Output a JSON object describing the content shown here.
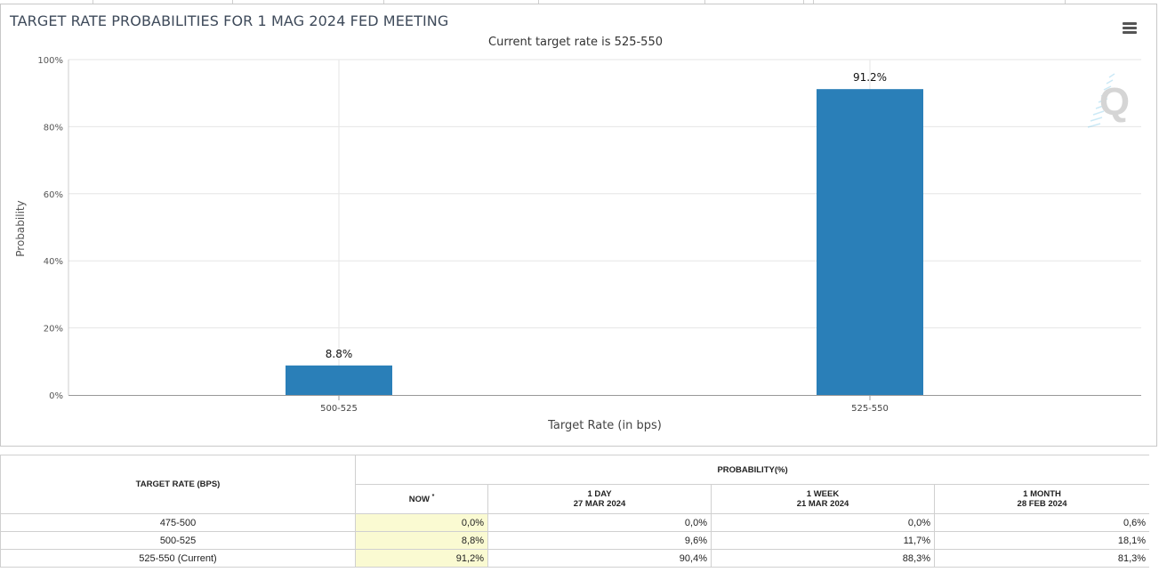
{
  "chart_data": {
    "type": "bar",
    "title": "TARGET RATE PROBABILITIES FOR 1 MAG 2024 FED MEETING",
    "subtitle": "Current target rate is 525-550",
    "xlabel": "Target Rate (in bps)",
    "ylabel": "Probability",
    "categories": [
      "500-525",
      "525-550"
    ],
    "values": [
      8.8,
      91.2
    ],
    "data_labels": [
      "8.8%",
      "91.2%"
    ],
    "ylim": [
      0,
      100
    ],
    "yticks": [
      0,
      20,
      40,
      60,
      80,
      100
    ],
    "ytick_labels": [
      "0%",
      "20%",
      "40%",
      "60%",
      "80%",
      "100%"
    ],
    "grid": true,
    "bar_color": "#2a7fb8"
  },
  "watermark": "Q",
  "menu_icon": "hamburger-menu-icon",
  "table": {
    "target_rate_header": "TARGET RATE (BPS)",
    "probability_header": "PROBABILITY(%)",
    "columns": [
      {
        "label": "NOW",
        "marker": "*",
        "date": ""
      },
      {
        "label": "1 DAY",
        "date": "27 MAR 2024"
      },
      {
        "label": "1 WEEK",
        "date": "21 MAR 2024"
      },
      {
        "label": "1 MONTH",
        "date": "28 FEB 2024"
      }
    ],
    "rows": [
      {
        "rate": "475-500",
        "values": [
          "0,0%",
          "0,0%",
          "0,0%",
          "0,6%"
        ]
      },
      {
        "rate": "500-525",
        "values": [
          "8,8%",
          "9,6%",
          "11,7%",
          "18,1%"
        ]
      },
      {
        "rate": "525-550 (Current)",
        "values": [
          "91,2%",
          "90,4%",
          "88,3%",
          "81,3%"
        ]
      }
    ]
  }
}
